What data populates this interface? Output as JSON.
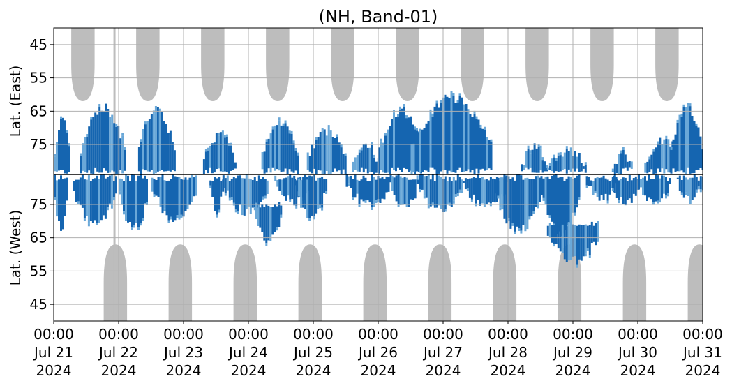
{
  "chart_data": {
    "type": "heatmap",
    "title": "(NH, Band-01)",
    "ylabel_top": "Lat. (East)",
    "ylabel_bottom": "Lat. (West)",
    "y_ticks_east": [
      "45",
      "55",
      "65",
      "75"
    ],
    "y_ticks_west": [
      "75",
      "65",
      "55",
      "45"
    ],
    "x_ticks": [
      {
        "time": "00:00",
        "date": "Jul 21",
        "year": "2024"
      },
      {
        "time": "00:00",
        "date": "Jul 22",
        "year": "2024"
      },
      {
        "time": "00:00",
        "date": "Jul 23",
        "year": "2024"
      },
      {
        "time": "00:00",
        "date": "Jul 24",
        "year": "2024"
      },
      {
        "time": "00:00",
        "date": "Jul 25",
        "year": "2024"
      },
      {
        "time": "00:00",
        "date": "Jul 26",
        "year": "2024"
      },
      {
        "time": "00:00",
        "date": "Jul 27",
        "year": "2024"
      },
      {
        "time": "00:00",
        "date": "Jul 28",
        "year": "2024"
      },
      {
        "time": "00:00",
        "date": "Jul 29",
        "year": "2024"
      },
      {
        "time": "00:00",
        "date": "Jul 30",
        "year": "2024"
      },
      {
        "time": "00:00",
        "date": "Jul 31",
        "year": "2024"
      }
    ],
    "x_range": [
      "2024-07-21",
      "2024-07-31"
    ],
    "lat_range": [
      40,
      84
    ],
    "grid": true,
    "colors": {
      "dark_blue": "#1565b0",
      "light_blue": "#6aa8d8",
      "gray_coverage": "#bdbdbd",
      "grid": "#b0b0b0",
      "divider": "#000000"
    },
    "gray_regions": {
      "east": [
        {
          "day": 0.45,
          "half_width": 0.18,
          "edge_lat": 62
        },
        {
          "day": 1.45,
          "half_width": 0.18,
          "edge_lat": 62
        },
        {
          "day": 2.45,
          "half_width": 0.18,
          "edge_lat": 62
        },
        {
          "day": 3.45,
          "half_width": 0.18,
          "edge_lat": 62
        },
        {
          "day": 4.45,
          "half_width": 0.18,
          "edge_lat": 62
        },
        {
          "day": 5.45,
          "half_width": 0.18,
          "edge_lat": 62
        },
        {
          "day": 6.45,
          "half_width": 0.18,
          "edge_lat": 62
        },
        {
          "day": 7.45,
          "half_width": 0.18,
          "edge_lat": 62
        },
        {
          "day": 8.45,
          "half_width": 0.18,
          "edge_lat": 62
        },
        {
          "day": 9.45,
          "half_width": 0.18,
          "edge_lat": 62
        }
      ],
      "west": [
        {
          "day": 0.95,
          "half_width": 0.18,
          "edge_lat": 63
        },
        {
          "day": 1.95,
          "half_width": 0.18,
          "edge_lat": 63
        },
        {
          "day": 2.95,
          "half_width": 0.18,
          "edge_lat": 63
        },
        {
          "day": 3.95,
          "half_width": 0.18,
          "edge_lat": 63
        },
        {
          "day": 4.95,
          "half_width": 0.18,
          "edge_lat": 63
        },
        {
          "day": 5.95,
          "half_width": 0.18,
          "edge_lat": 63
        },
        {
          "day": 6.95,
          "half_width": 0.18,
          "edge_lat": 63
        },
        {
          "day": 7.95,
          "half_width": 0.18,
          "edge_lat": 63
        },
        {
          "day": 8.95,
          "half_width": 0.18,
          "edge_lat": 63
        },
        {
          "day": 9.95,
          "half_width": 0.18,
          "edge_lat": 63
        }
      ]
    },
    "blue_patches": {
      "east": [
        {
          "start": 0.0,
          "end": 0.25,
          "lat_from": 68,
          "lat_to": 84
        },
        {
          "start": 0.4,
          "end": 1.1,
          "lat_from": 64,
          "lat_to": 84
        },
        {
          "start": 1.3,
          "end": 1.85,
          "lat_from": 64,
          "lat_to": 84
        },
        {
          "start": 2.3,
          "end": 2.8,
          "lat_from": 72,
          "lat_to": 84
        },
        {
          "start": 3.2,
          "end": 3.75,
          "lat_from": 68,
          "lat_to": 84
        },
        {
          "start": 3.9,
          "end": 4.5,
          "lat_from": 71,
          "lat_to": 84
        },
        {
          "start": 4.6,
          "end": 5.0,
          "lat_from": 75,
          "lat_to": 84
        },
        {
          "start": 5.0,
          "end": 5.7,
          "lat_from": 65,
          "lat_to": 84
        },
        {
          "start": 5.5,
          "end": 6.75,
          "lat_from": 61,
          "lat_to": 84
        },
        {
          "start": 7.2,
          "end": 7.6,
          "lat_from": 76,
          "lat_to": 84
        },
        {
          "start": 7.6,
          "end": 8.2,
          "lat_from": 77,
          "lat_to": 84
        },
        {
          "start": 8.6,
          "end": 8.9,
          "lat_from": 78,
          "lat_to": 84
        },
        {
          "start": 9.1,
          "end": 9.7,
          "lat_from": 74,
          "lat_to": 84
        },
        {
          "start": 9.5,
          "end": 10.0,
          "lat_from": 64,
          "lat_to": 84
        }
      ],
      "west": [
        {
          "start": 0.0,
          "end": 0.2,
          "lat_from": 68,
          "lat_to": 84
        },
        {
          "start": 0.3,
          "end": 0.95,
          "lat_from": 69,
          "lat_to": 84
        },
        {
          "start": 1.0,
          "end": 1.45,
          "lat_from": 68,
          "lat_to": 84
        },
        {
          "start": 1.5,
          "end": 2.2,
          "lat_from": 71,
          "lat_to": 84
        },
        {
          "start": 2.4,
          "end": 2.6,
          "lat_from": 73,
          "lat_to": 84
        },
        {
          "start": 2.6,
          "end": 3.3,
          "lat_from": 73,
          "lat_to": 84
        },
        {
          "start": 3.1,
          "end": 3.5,
          "lat_from": 64,
          "lat_to": 76
        },
        {
          "start": 3.4,
          "end": 4.0,
          "lat_from": 76,
          "lat_to": 84
        },
        {
          "start": 3.7,
          "end": 4.2,
          "lat_from": 71,
          "lat_to": 84
        },
        {
          "start": 4.5,
          "end": 5.2,
          "lat_from": 75,
          "lat_to": 84
        },
        {
          "start": 5.2,
          "end": 5.6,
          "lat_from": 74,
          "lat_to": 84
        },
        {
          "start": 5.6,
          "end": 6.3,
          "lat_from": 74,
          "lat_to": 84
        },
        {
          "start": 6.3,
          "end": 7.0,
          "lat_from": 75,
          "lat_to": 84
        },
        {
          "start": 6.8,
          "end": 7.5,
          "lat_from": 67,
          "lat_to": 84
        },
        {
          "start": 7.5,
          "end": 8.1,
          "lat_from": 66,
          "lat_to": 84
        },
        {
          "start": 7.6,
          "end": 8.4,
          "lat_from": 58,
          "lat_to": 70
        },
        {
          "start": 8.2,
          "end": 8.7,
          "lat_from": 77,
          "lat_to": 84
        },
        {
          "start": 8.6,
          "end": 9.0,
          "lat_from": 75,
          "lat_to": 84
        },
        {
          "start": 9.0,
          "end": 9.5,
          "lat_from": 75,
          "lat_to": 84
        },
        {
          "start": 9.6,
          "end": 10.0,
          "lat_from": 77,
          "lat_to": 84
        }
      ]
    }
  }
}
